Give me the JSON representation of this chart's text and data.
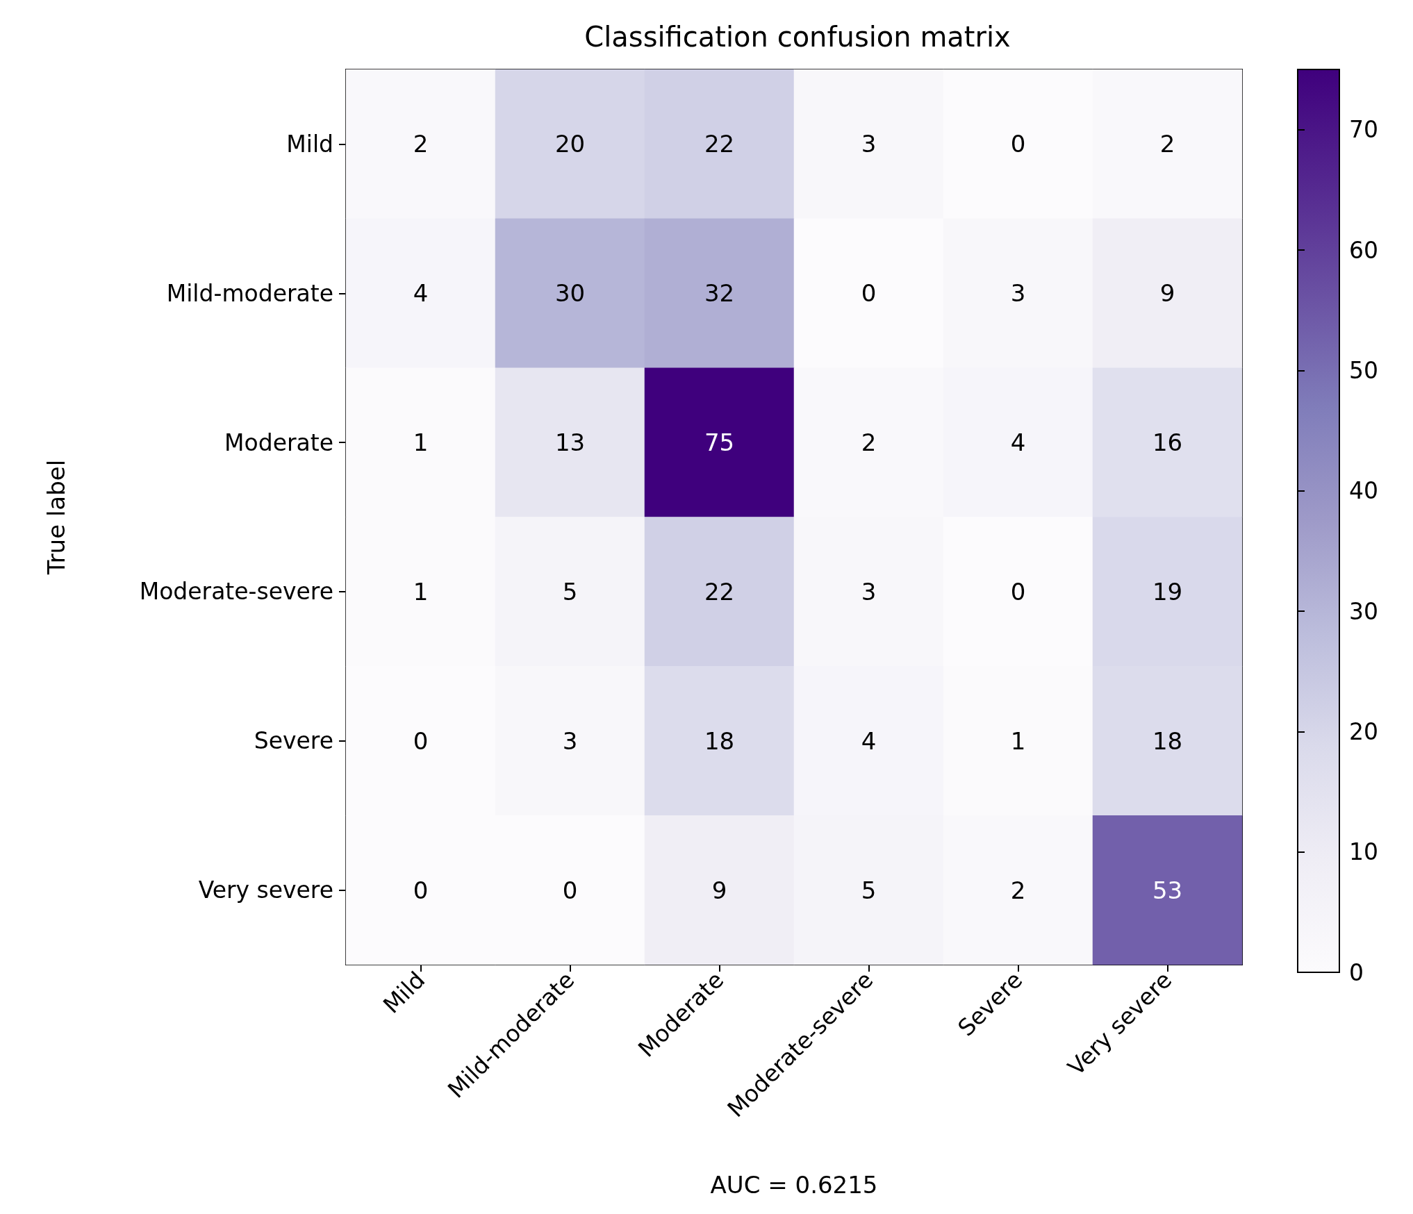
{
  "chart_data": {
    "type": "heatmap",
    "title": "Classification confusion matrix",
    "xlabel": "AUC = 0.6215",
    "ylabel": "True label",
    "categories": [
      "Mild",
      "Mild-moderate",
      "Moderate",
      "Moderate-severe",
      "Severe",
      "Very severe"
    ],
    "y_categories": [
      "Mild",
      "Mild-moderate",
      "Moderate",
      "Moderate-severe",
      "Severe",
      "Very severe"
    ],
    "cells": [
      [
        2,
        20,
        22,
        3,
        0,
        2
      ],
      [
        4,
        30,
        32,
        0,
        3,
        9
      ],
      [
        1,
        13,
        75,
        2,
        4,
        16
      ],
      [
        1,
        5,
        22,
        3,
        0,
        19
      ],
      [
        0,
        3,
        18,
        4,
        1,
        18
      ],
      [
        0,
        0,
        9,
        5,
        2,
        53
      ]
    ],
    "data_labels": true,
    "clim": [
      0,
      75
    ],
    "cticks": [
      0,
      10,
      20,
      30,
      40,
      50,
      60,
      70
    ]
  }
}
